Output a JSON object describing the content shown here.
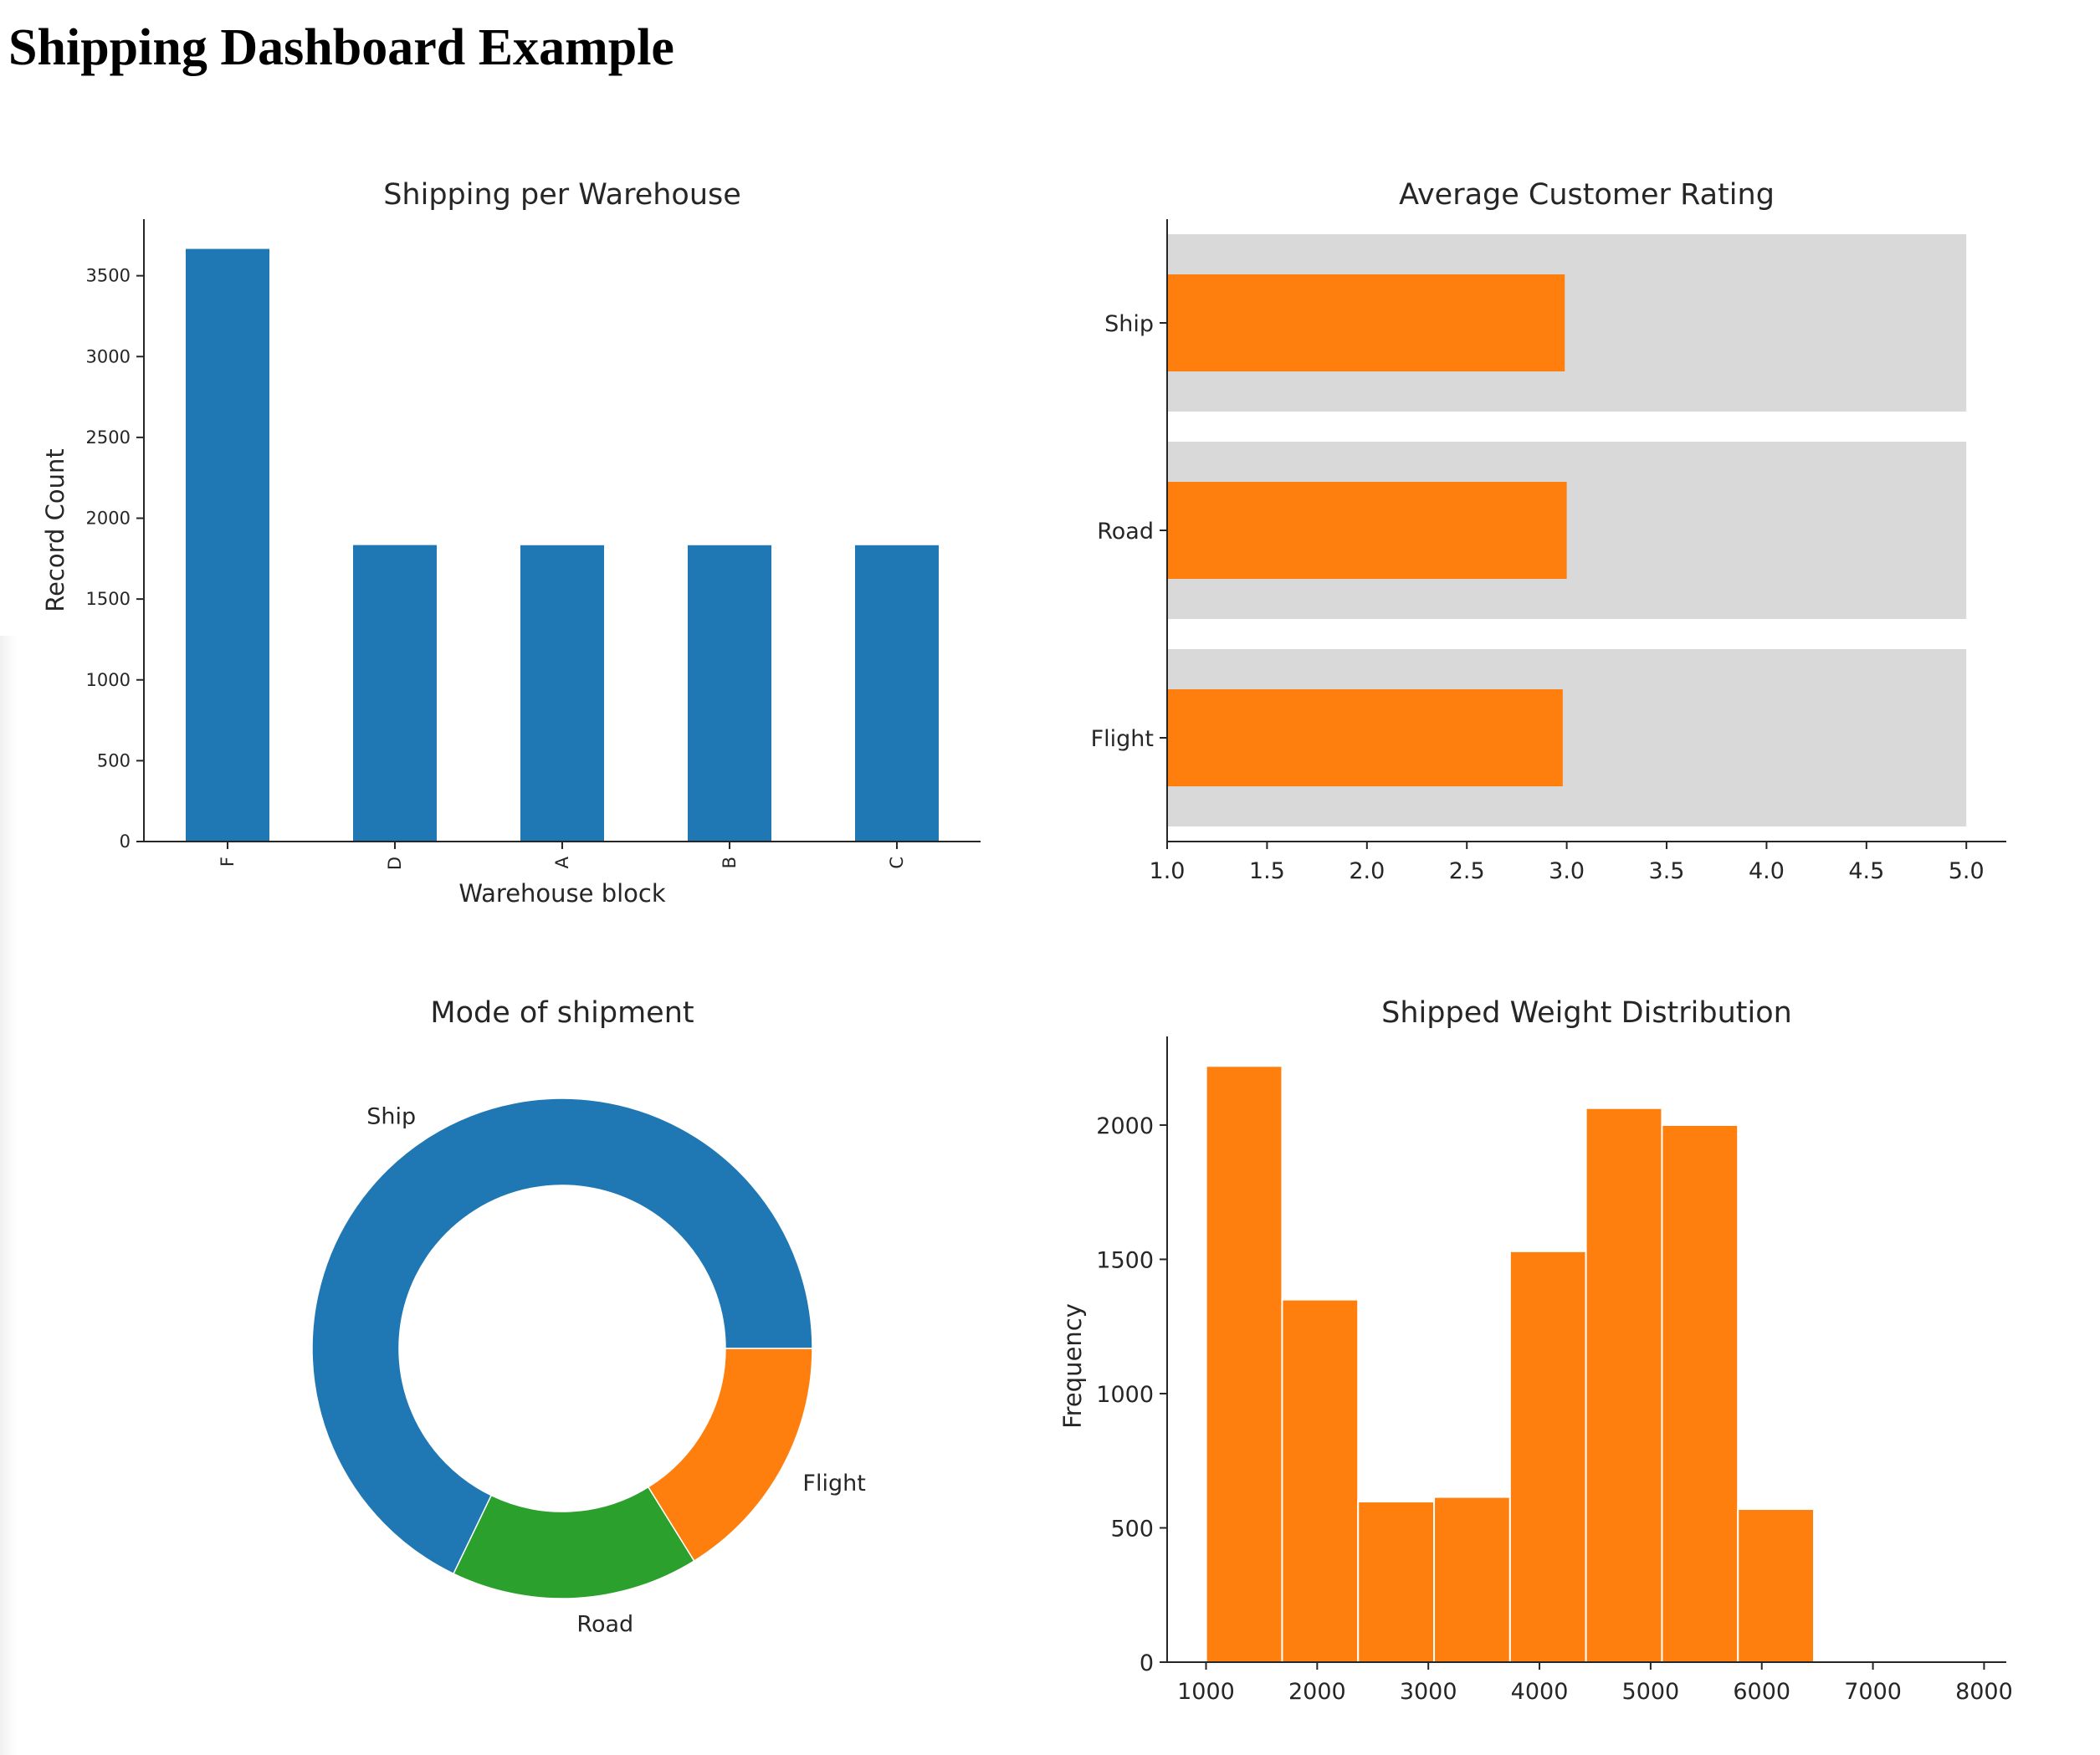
{
  "page": {
    "title": "Shipping Dashboard Example"
  },
  "colors": {
    "blue": "#1f77b4",
    "orange": "#ff7f0e",
    "green": "#2ca02c",
    "track": "#d9d9d9"
  },
  "chart_data": [
    {
      "id": "warehouse",
      "type": "bar",
      "title": "Shipping per Warehouse",
      "xlabel": "Warehouse block",
      "ylabel": "Record Count",
      "categories": [
        "F",
        "D",
        "A",
        "B",
        "C"
      ],
      "values": [
        3666,
        1834,
        1833,
        1833,
        1833
      ],
      "ylim": [
        0,
        3850
      ],
      "yticks": [
        0,
        500,
        1000,
        1500,
        2000,
        2500,
        3000,
        3500
      ],
      "grid": false
    },
    {
      "id": "rating",
      "type": "bar",
      "orientation": "horizontal",
      "title": "Average Customer Rating",
      "xlabel": "",
      "ylabel": "",
      "categories": [
        "Ship",
        "Road",
        "Flight"
      ],
      "values": [
        2.99,
        3.0,
        2.98
      ],
      "range": [
        1.0,
        5.0
      ],
      "xlim": [
        1.0,
        5.2
      ],
      "xticks": [
        "1.0",
        "1.5",
        "2.0",
        "2.5",
        "3.0",
        "3.5",
        "4.0",
        "4.5",
        "5.0"
      ],
      "grid": false
    },
    {
      "id": "mode",
      "type": "pie",
      "style": "donut",
      "title": "Mode of shipment",
      "labels": [
        "Ship",
        "Road",
        "Flight"
      ],
      "values": [
        7462,
        1760,
        1777
      ],
      "grid": false
    },
    {
      "id": "weight",
      "type": "bar",
      "subtype": "histogram",
      "title": "Shipped Weight Distribution",
      "xlabel": "",
      "ylabel": "Frequency",
      "bin_edges": [
        1001,
        1684.5,
        2368,
        3051.5,
        3735,
        4418.5,
        5102,
        5785.5,
        6469
      ],
      "values": [
        2220,
        1350,
        598,
        615,
        1530,
        2063,
        2000,
        570
      ],
      "xlim": [
        650,
        8200
      ],
      "ylim": [
        0,
        2330
      ],
      "xticks": [
        1000,
        2000,
        3000,
        4000,
        5000,
        6000,
        7000,
        8000
      ],
      "yticks": [
        0,
        500,
        1000,
        1500,
        2000
      ],
      "grid": false
    }
  ]
}
